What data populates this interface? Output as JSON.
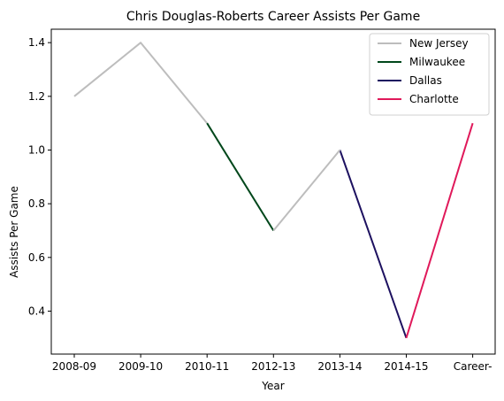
{
  "chart_data": {
    "type": "line",
    "title": "Chris Douglas-Roberts Career Assists Per Game",
    "xlabel": "Year",
    "ylabel": "Assists Per Game",
    "categories": [
      "2008-09",
      "2009-10",
      "2010-11",
      "2012-13",
      "2013-14",
      "2014-15",
      "Career-"
    ],
    "ylim": [
      0.24,
      1.45
    ],
    "yticks": [
      0.4,
      0.6,
      0.8,
      1.0,
      1.2,
      1.4
    ],
    "ytick_labels": [
      "0.4",
      "0.6",
      "0.8",
      "1.0",
      "1.2",
      "1.4"
    ],
    "grid": false,
    "legend_position": "top-right",
    "series": [
      {
        "name": "New Jersey",
        "color": "#BDBDBD",
        "points": [
          [
            "2008-09",
            1.2
          ],
          [
            "2009-10",
            1.4
          ],
          [
            "2010-11",
            1.1
          ]
        ]
      },
      {
        "name": "Milwaukee",
        "color": "#00471B",
        "points": [
          [
            "2010-11",
            1.1
          ],
          [
            "2012-13",
            0.7
          ]
        ]
      },
      {
        "name": "Dallas",
        "color": "#1D1160",
        "points": [
          [
            "2013-14",
            1.0
          ],
          [
            "2014-15",
            0.3
          ]
        ]
      },
      {
        "name": "Charlotte",
        "color": "#E0195A",
        "points": [
          [
            "2014-15",
            0.3
          ],
          [
            "Career-",
            1.1
          ]
        ]
      },
      {
        "name": "",
        "color": "#BDBDBD",
        "points": [
          [
            "2012-13",
            0.7
          ],
          [
            "2013-14",
            1.0
          ]
        ]
      }
    ]
  }
}
